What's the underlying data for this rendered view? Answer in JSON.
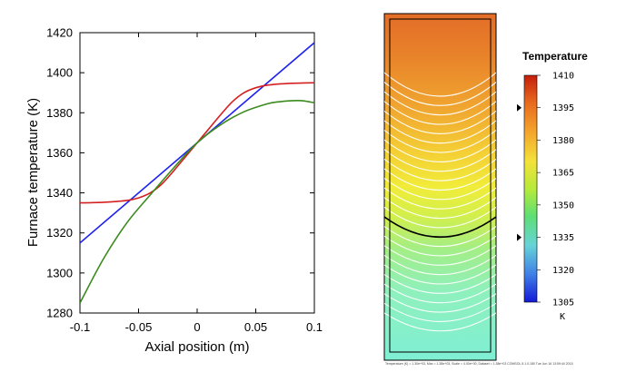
{
  "chart_data": [
    {
      "type": "line",
      "title": "",
      "xlabel": "Axial position (m)",
      "ylabel": "Furnace temperature (K)",
      "xlim": [
        -0.1,
        0.1
      ],
      "ylim": [
        1280,
        1420
      ],
      "xticks": [
        -0.1,
        -0.05,
        0,
        0.05,
        0.1
      ],
      "xtick_labels": [
        "-0.1",
        "-0.05",
        "0",
        "0.05",
        "0.1"
      ],
      "yticks": [
        1280,
        1300,
        1320,
        1340,
        1360,
        1380,
        1400,
        1420
      ],
      "ytick_labels": [
        "1280",
        "1300",
        "1320",
        "1340",
        "1360",
        "1380",
        "1400",
        "1420"
      ],
      "grid": false,
      "series": [
        {
          "name": "blue",
          "color": "#1f22ee",
          "x": [
            -0.1,
            0.1
          ],
          "y": [
            1315,
            1415
          ]
        },
        {
          "name": "red",
          "color": "#d42020",
          "x": [
            -0.1,
            -0.08,
            -0.06,
            -0.05,
            -0.04,
            -0.03,
            -0.02,
            -0.01,
            0,
            0.01,
            0.02,
            0.03,
            0.04,
            0.05,
            0.06,
            0.08,
            0.1
          ],
          "y": [
            1335,
            1335.3,
            1336.2,
            1337.5,
            1340,
            1344.5,
            1351,
            1358,
            1365,
            1372,
            1379,
            1385.5,
            1390,
            1392.5,
            1393.8,
            1394.7,
            1395
          ]
        },
        {
          "name": "green",
          "color": "#3a8a1e",
          "x": [
            -0.1,
            -0.08,
            -0.06,
            -0.04,
            -0.02,
            0,
            0.02,
            0.04,
            0.06,
            0.07,
            0.08,
            0.09,
            0.1
          ],
          "y": [
            1285,
            1307,
            1325,
            1339,
            1352.5,
            1365,
            1374,
            1380.5,
            1384.5,
            1385.5,
            1386,
            1386,
            1385
          ]
        }
      ]
    },
    {
      "type": "heatmap",
      "title": "Temperature",
      "colorbar_unit": "K",
      "colorbar_ticks": [
        "1410",
        "1395",
        "1380",
        "1365",
        "1350",
        "1335",
        "1320",
        "1305"
      ],
      "value_range": [
        1305,
        1410
      ],
      "colorbar_markers": [
        1395,
        1335
      ],
      "highlighted_contour": 1365,
      "footer": "Temperature (K) = 1.30e+03, Max = 1.38e+03, Scale = 4.00e+00, Dataset = 1.38e+03 COMSOL 5.1.0.180 Tue Jun 16 13:59:44 2015"
    }
  ]
}
